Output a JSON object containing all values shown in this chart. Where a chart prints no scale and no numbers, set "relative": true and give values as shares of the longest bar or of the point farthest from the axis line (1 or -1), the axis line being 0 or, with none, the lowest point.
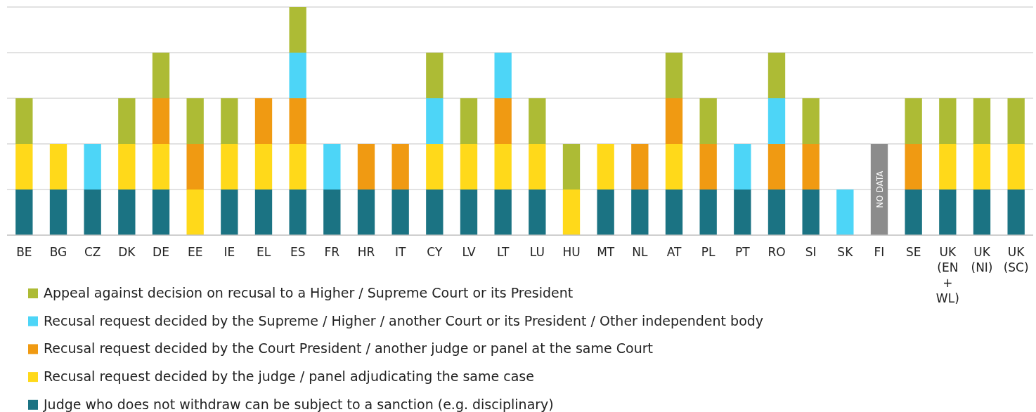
{
  "chart_data": {
    "type": "bar",
    "stacked": true,
    "relative": true,
    "grid": "y",
    "legend": "bottom",
    "categories": [
      "BE",
      "BG",
      "CZ",
      "DK",
      "DE",
      "EE",
      "IE",
      "EL",
      "ES",
      "FR",
      "HR",
      "IT",
      "CY",
      "LV",
      "LT",
      "LU",
      "HU",
      "MT",
      "NL",
      "AT",
      "PL",
      "PT",
      "RO",
      "SI",
      "SK",
      "FI",
      "SE",
      "UK (EN + WL)",
      "UK (NI)",
      "UK (SC)"
    ],
    "series": [
      {
        "name": "Judge who does not withdraw can be subject to a sanction (e.g. disciplinary)",
        "color": "#1b7383",
        "values": [
          0.2,
          0.2,
          0.2,
          0.2,
          0.2,
          0,
          0.2,
          0.2,
          0.2,
          0.2,
          0.2,
          0.2,
          0.2,
          0.2,
          0.2,
          0.2,
          0,
          0.2,
          0.2,
          0.2,
          0.2,
          0.2,
          0.2,
          0.2,
          0,
          null,
          0.2,
          0.2,
          0.2,
          0.2
        ]
      },
      {
        "name": "Recusal request decided by the judge / panel adjudicating the same case",
        "color": "#ffd91a",
        "values": [
          0.2,
          0.2,
          0,
          0.2,
          0.2,
          0.2,
          0.2,
          0.2,
          0.2,
          0,
          0,
          0,
          0.2,
          0.2,
          0.2,
          0.2,
          0.2,
          0.2,
          0,
          0.2,
          0,
          0,
          0,
          0,
          0,
          null,
          0,
          0.2,
          0.2,
          0.2
        ]
      },
      {
        "name": "Recusal request decided by the Court President / another judge or panel at the same Court",
        "color": "#f09a12",
        "values": [
          0,
          0,
          0,
          0,
          0.2,
          0.2,
          0,
          0.2,
          0.2,
          0,
          0.2,
          0.2,
          0,
          0,
          0.2,
          0,
          0,
          0,
          0.2,
          0.2,
          0.2,
          0,
          0.2,
          0.2,
          0,
          null,
          0.2,
          0,
          0,
          0
        ]
      },
      {
        "name": "Recusal request decided by the Supreme / Higher / another Court or its President / Other independent body",
        "color": "#4dd5f7",
        "values": [
          0,
          0,
          0.2,
          0,
          0,
          0,
          0,
          0,
          0.2,
          0.2,
          0,
          0,
          0.2,
          0,
          0.2,
          0,
          0,
          0,
          0,
          0,
          0,
          0.2,
          0.2,
          0,
          0.2,
          null,
          0,
          0,
          0,
          0
        ]
      },
      {
        "name": "Appeal against decision on recusal to a Higher / Supreme Court or its President",
        "color": "#adbb35",
        "values": [
          0.2,
          0,
          0,
          0.2,
          0.2,
          0.2,
          0.2,
          0,
          0.2,
          0,
          0,
          0,
          0.2,
          0.2,
          0,
          0.2,
          0.2,
          0,
          0,
          0.2,
          0.2,
          0,
          0.2,
          0.2,
          0,
          null,
          0.2,
          0.2,
          0.2,
          0.2
        ]
      },
      {
        "color": "#8c8c8c",
        "values": [
          null,
          null,
          null,
          null,
          null,
          null,
          null,
          null,
          null,
          null,
          null,
          null,
          null,
          null,
          null,
          null,
          null,
          null,
          null,
          null,
          null,
          null,
          null,
          null,
          null,
          0.4,
          null,
          null,
          null,
          null
        ]
      }
    ],
    "annotations": [
      "NO DATA"
    ]
  }
}
